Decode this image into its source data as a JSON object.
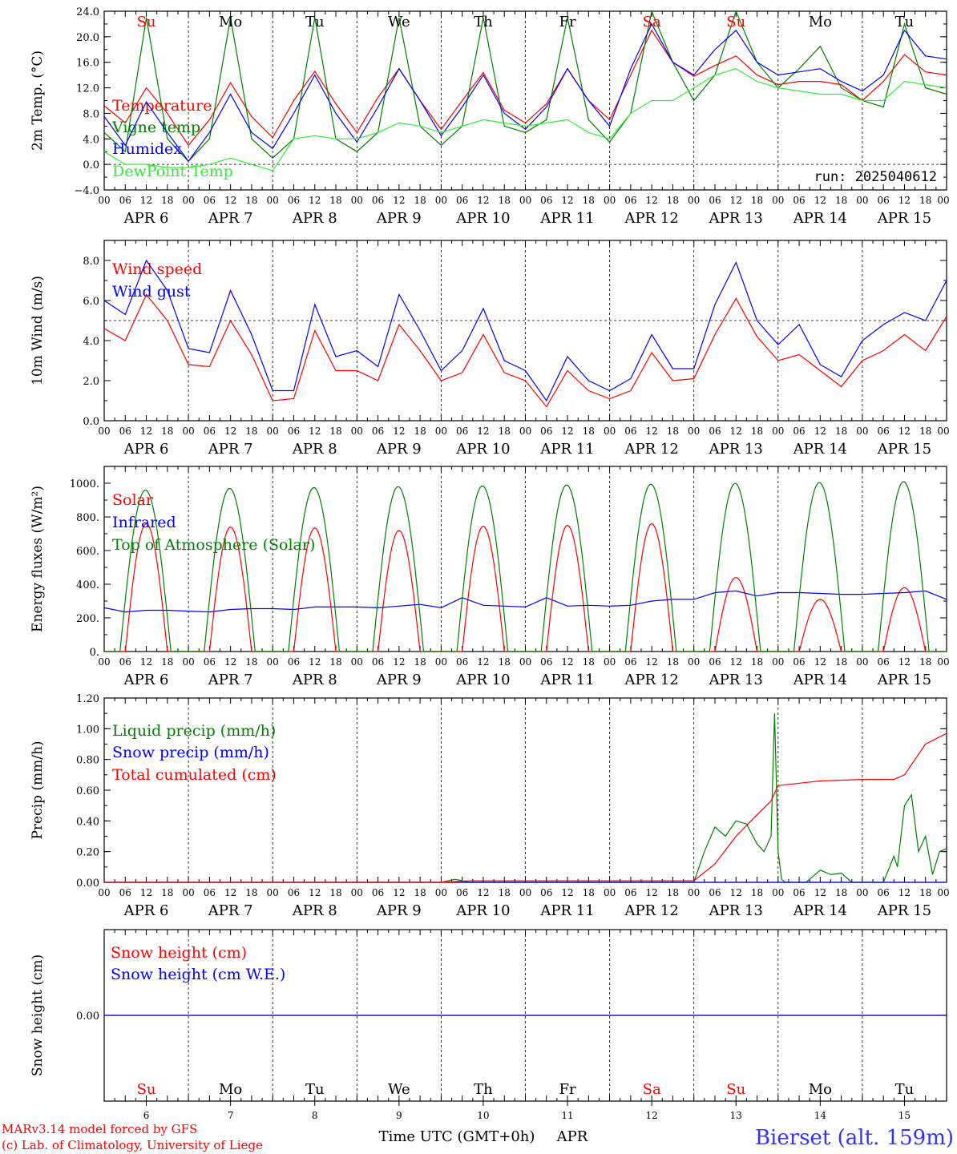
{
  "chart_data": [
    {
      "type": "line",
      "ylabel": "2m Temp. (°C)",
      "ylim": [
        -4,
        24
      ],
      "yticks": [
        "24.0",
        "20.0",
        "16.0",
        "12.0",
        "8.0",
        "4.0",
        "0.0",
        "−4.0"
      ],
      "annotation": "run: 2025040612",
      "grid": "vertical dashed lines at day boundaries; horizontal dashed line at 0.0",
      "series": [
        {
          "name": "Temperature",
          "color": "#ff0000",
          "x_hours": [
            0,
            6,
            12,
            18,
            24,
            30,
            36,
            42,
            48,
            54,
            60,
            66,
            72,
            78,
            84,
            90,
            96,
            102,
            108,
            114,
            120,
            126,
            132,
            138,
            144,
            150,
            156,
            162,
            168,
            174,
            180,
            186,
            192,
            198,
            204,
            210,
            216,
            222,
            228,
            234,
            240
          ],
          "values": [
            9.2,
            6.5,
            12.0,
            8.0,
            3.0,
            7.0,
            12.8,
            7.5,
            4.2,
            10.0,
            14.6,
            9.5,
            5.0,
            10.5,
            15.0,
            10.0,
            5.5,
            10.0,
            14.4,
            8.5,
            6.5,
            9.5,
            15.0,
            10.0,
            7.0,
            14.0,
            21.0,
            16.0,
            13.8,
            15.5,
            17.0,
            14.0,
            12.5,
            13.0,
            13.0,
            12.5,
            10.0,
            13.0,
            17.2,
            14.5,
            14.0
          ]
        },
        {
          "name": "Vigne temp",
          "color": "#008000",
          "x_hours": [
            0,
            6,
            12,
            18,
            24,
            30,
            36,
            42,
            48,
            54,
            60,
            66,
            72,
            78,
            84,
            90,
            96,
            102,
            108,
            114,
            120,
            126,
            132,
            138,
            144,
            150,
            156,
            162,
            168,
            174,
            180,
            186,
            192,
            198,
            204,
            210,
            216,
            222,
            228,
            234,
            240
          ],
          "values": [
            5.0,
            2.0,
            23.0,
            4.0,
            0.5,
            4.0,
            23.0,
            4.0,
            1.0,
            4.0,
            23.0,
            4.0,
            2.0,
            5.0,
            23.0,
            6.0,
            3.0,
            6.0,
            23.0,
            6.0,
            5.0,
            7.0,
            23.0,
            7.0,
            3.5,
            8.0,
            24.0,
            16.0,
            10.0,
            14.0,
            24.0,
            16.0,
            12.0,
            15.0,
            18.5,
            12.0,
            10.0,
            9.0,
            22.0,
            12.0,
            11.0
          ]
        },
        {
          "name": "Humidex",
          "color": "#0000ff",
          "x_hours": [
            0,
            6,
            12,
            18,
            24,
            30,
            36,
            42,
            48,
            54,
            60,
            66,
            72,
            78,
            84,
            90,
            96,
            102,
            108,
            114,
            120,
            126,
            132,
            138,
            144,
            150,
            156,
            162,
            168,
            174,
            180,
            186,
            192,
            198,
            204,
            210,
            216,
            222,
            228,
            234,
            240
          ],
          "values": [
            7.5,
            3.0,
            9.8,
            5.0,
            0.5,
            5.0,
            11.0,
            5.0,
            2.5,
            8.0,
            14.0,
            8.0,
            3.5,
            9.0,
            15.0,
            10.0,
            4.5,
            9.0,
            14.0,
            8.0,
            5.5,
            9.0,
            15.0,
            10.0,
            6.0,
            15.0,
            22.0,
            16.0,
            14.0,
            18.0,
            21.0,
            16.0,
            14.0,
            14.5,
            15.0,
            13.0,
            11.5,
            14.0,
            21.0,
            17.0,
            16.5
          ]
        },
        {
          "name": "DewPoint Temp",
          "color": "#33ee33",
          "x_hours": [
            0,
            6,
            12,
            18,
            24,
            30,
            36,
            42,
            48,
            54,
            60,
            66,
            72,
            78,
            84,
            90,
            96,
            102,
            108,
            114,
            120,
            126,
            132,
            138,
            144,
            150,
            156,
            162,
            168,
            174,
            180,
            186,
            192,
            198,
            204,
            210,
            216,
            222,
            228,
            234,
            240
          ],
          "values": [
            2.0,
            0.0,
            0.0,
            -0.5,
            -0.5,
            0.0,
            1.0,
            0.0,
            -1.0,
            4.0,
            4.5,
            4.0,
            4.0,
            5.0,
            6.5,
            6.0,
            5.0,
            6.0,
            7.0,
            6.5,
            6.0,
            6.5,
            7.0,
            5.0,
            4.0,
            8.0,
            10.0,
            10.0,
            12.0,
            14.0,
            15.0,
            13.0,
            12.0,
            11.5,
            11.0,
            11.0,
            10.0,
            10.0,
            13.0,
            12.5,
            12.0
          ]
        }
      ]
    },
    {
      "type": "line",
      "ylabel": "10m Wind (m/s)",
      "ylim": [
        0,
        9
      ],
      "yticks": [
        "8.0",
        "6.0",
        "4.0",
        "2.0",
        "0.0"
      ],
      "grid": "vertical dashed lines at day boundaries; horizontal dashed line at 5.0",
      "series": [
        {
          "name": "Wind speed",
          "color": "#ff0000",
          "x_hours": [
            0,
            6,
            12,
            18,
            24,
            30,
            36,
            42,
            48,
            54,
            60,
            66,
            72,
            78,
            84,
            90,
            96,
            102,
            108,
            114,
            120,
            126,
            132,
            138,
            144,
            150,
            156,
            162,
            168,
            174,
            180,
            186,
            192,
            198,
            204,
            210,
            216,
            222,
            228,
            234,
            240
          ],
          "values": [
            4.6,
            4.0,
            6.3,
            5.0,
            2.8,
            2.7,
            5.0,
            3.3,
            1.0,
            1.1,
            4.5,
            2.5,
            2.5,
            2.0,
            4.8,
            3.5,
            2.0,
            2.4,
            4.3,
            2.4,
            2.0,
            0.7,
            2.5,
            1.5,
            1.1,
            1.5,
            3.4,
            2.0,
            2.1,
            4.3,
            6.1,
            4.2,
            3.0,
            3.3,
            2.5,
            1.7,
            3.0,
            3.5,
            4.3,
            3.5,
            5.2
          ]
        },
        {
          "name": "Wind gust",
          "color": "#0000ff",
          "x_hours": [
            0,
            6,
            12,
            18,
            24,
            30,
            36,
            42,
            48,
            54,
            60,
            66,
            72,
            78,
            84,
            90,
            96,
            102,
            108,
            114,
            120,
            126,
            132,
            138,
            144,
            150,
            156,
            162,
            168,
            174,
            180,
            186,
            192,
            198,
            204,
            210,
            216,
            222,
            228,
            234,
            240
          ],
          "values": [
            6.0,
            5.3,
            8.0,
            6.5,
            3.6,
            3.4,
            6.5,
            4.3,
            1.5,
            1.5,
            5.8,
            3.2,
            3.5,
            2.7,
            6.3,
            4.5,
            2.5,
            3.5,
            5.6,
            3.0,
            2.5,
            1.0,
            3.2,
            2.0,
            1.5,
            2.1,
            4.3,
            2.6,
            2.6,
            5.8,
            7.9,
            5.0,
            3.8,
            4.8,
            2.8,
            2.2,
            4.0,
            4.8,
            5.4,
            5.0,
            7.0
          ]
        }
      ]
    },
    {
      "type": "line",
      "ylabel": "Energy fluxes (W/m²)",
      "ylim": [
        0,
        1100
      ],
      "yticks": [
        "1000.",
        "800.",
        "600.",
        "400.",
        "200.",
        "0."
      ],
      "grid": "vertical dashed lines at day boundaries",
      "series": [
        {
          "name": "Solar",
          "color": "#ff0000",
          "day_peaks": [
            760,
            740,
            735,
            720,
            745,
            750,
            760,
            440,
            310,
            380
          ]
        },
        {
          "name": "Infrared",
          "color": "#0000ff",
          "x_hours": [
            0,
            6,
            12,
            18,
            24,
            30,
            36,
            42,
            48,
            54,
            60,
            66,
            72,
            78,
            84,
            90,
            96,
            102,
            108,
            114,
            120,
            126,
            132,
            138,
            144,
            150,
            156,
            162,
            168,
            174,
            180,
            186,
            192,
            198,
            204,
            210,
            216,
            222,
            228,
            234,
            240
          ],
          "values": [
            260,
            235,
            245,
            245,
            240,
            235,
            250,
            255,
            255,
            250,
            265,
            265,
            265,
            260,
            270,
            280,
            260,
            320,
            275,
            270,
            265,
            320,
            270,
            275,
            270,
            275,
            300,
            310,
            310,
            350,
            360,
            330,
            350,
            350,
            345,
            340,
            340,
            345,
            350,
            360,
            310
          ]
        },
        {
          "name": "Top of Atmosphere (Solar)",
          "color": "#008000",
          "day_peaks": [
            960,
            970,
            975,
            980,
            985,
            990,
            995,
            1000,
            1005,
            1010
          ]
        }
      ]
    },
    {
      "type": "line",
      "ylabel": "Precip (mm/h)",
      "ylim": [
        0,
        1.2
      ],
      "yticks": [
        "1.20",
        "1.00",
        "0.80",
        "0.60",
        "0.40",
        "0.20",
        "0.00"
      ],
      "grid": "vertical dashed lines at day boundaries",
      "series": [
        {
          "name": "Liquid precip (mm/h)",
          "color": "#008000",
          "x_hours": [
            0,
            96,
            100,
            104,
            168,
            171,
            174,
            177,
            180,
            183,
            186,
            188,
            190,
            191,
            192,
            193,
            194,
            196,
            200,
            204,
            207,
            210,
            213,
            216,
            222,
            225,
            226,
            228,
            230,
            232,
            234,
            236,
            238,
            240
          ],
          "values": [
            0,
            0,
            0.02,
            0,
            0,
            0.2,
            0.36,
            0.3,
            0.4,
            0.38,
            0.25,
            0.2,
            0.3,
            1.1,
            0.2,
            0.02,
            0,
            0,
            0,
            0.08,
            0.05,
            0.06,
            0,
            0,
            0,
            0.17,
            0.1,
            0.5,
            0.57,
            0.2,
            0.3,
            0.05,
            0.2,
            0.22
          ]
        },
        {
          "name": "Snow precip (mm/h)",
          "color": "#0000ff",
          "x_hours": [
            0,
            240
          ],
          "values": [
            0,
            0
          ]
        },
        {
          "name": "Total cumulated (cm)",
          "color": "#ff0000",
          "x_hours": [
            0,
            96,
            104,
            168,
            174,
            180,
            186,
            190,
            192,
            204,
            216,
            225,
            228,
            234,
            240
          ],
          "values": [
            0,
            0,
            0.01,
            0.01,
            0.12,
            0.3,
            0.44,
            0.53,
            0.63,
            0.66,
            0.67,
            0.67,
            0.7,
            0.9,
            0.97
          ]
        }
      ]
    },
    {
      "type": "line",
      "ylabel": "Snow height (cm)",
      "yticks": [
        "0.00"
      ],
      "grid": "vertical dashed lines at day boundaries",
      "series": [
        {
          "name": "Snow height (cm)",
          "color": "#ff0000",
          "x_hours": [
            0,
            240
          ],
          "values": [
            0,
            0
          ]
        },
        {
          "name": "Snow height (cm W.E.)",
          "color": "#0000ff",
          "x_hours": [
            0,
            240
          ],
          "values": [
            0,
            0
          ]
        }
      ]
    }
  ],
  "axis": {
    "hour_labels": [
      "00",
      "06",
      "12",
      "18"
    ],
    "final_hour_label": "00",
    "date_labels": [
      "APR 6",
      "APR 7",
      "APR 8",
      "APR 9",
      "APR 10",
      "APR 11",
      "APR 12",
      "APR 13",
      "APR 14",
      "APR 15"
    ],
    "day_numbers": [
      "6",
      "7",
      "8",
      "9",
      "10",
      "11",
      "12",
      "13",
      "14",
      "15"
    ],
    "weekdays": [
      {
        "label": "Su",
        "color": "#ff0000"
      },
      {
        "label": "Mo",
        "color": "#000000"
      },
      {
        "label": "Tu",
        "color": "#000000"
      },
      {
        "label": "We",
        "color": "#000000"
      },
      {
        "label": "Th",
        "color": "#000000"
      },
      {
        "label": "Fr",
        "color": "#000000"
      },
      {
        "label": "Sa",
        "color": "#ff0000"
      },
      {
        "label": "Su",
        "color": "#ff0000"
      },
      {
        "label": "Mo",
        "color": "#000000"
      },
      {
        "label": "Tu",
        "color": "#000000"
      }
    ],
    "xlabel": "Time UTC (GMT+0h)",
    "month": "APR"
  },
  "footer": {
    "model": "MARv3.14 model forced by GFS",
    "credit": "(c) Lab. of Climatology, University of Liege",
    "station": "Bierset (alt. 159m)",
    "credit_color": "#ff0000",
    "station_color": "#3333ff"
  }
}
